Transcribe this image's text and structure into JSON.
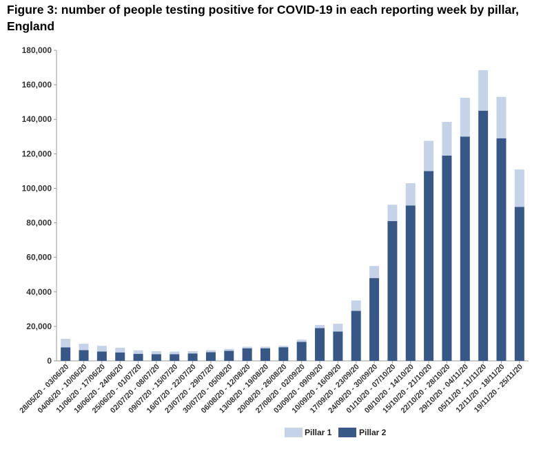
{
  "title": "Figure 3: number of people testing positive for COVID-19 in each reporting week by pillar, England",
  "colors": {
    "pillar1": "#c5d3e8",
    "pillar2": "#375887",
    "axis": "#999999"
  },
  "chart_data": {
    "type": "bar",
    "stacked": true,
    "title": "Figure 3: number of people testing positive for COVID-19 in each reporting week by pillar, England",
    "xlabel": "",
    "ylabel": "",
    "ylim": [
      0,
      180000
    ],
    "yticks": [
      0,
      20000,
      40000,
      60000,
      80000,
      100000,
      120000,
      140000,
      160000,
      180000
    ],
    "ytick_labels": [
      "0",
      "20,000",
      "40,000",
      "60,000",
      "80,000",
      "100,000",
      "120,000",
      "140,000",
      "160,000",
      "180,000"
    ],
    "grid": false,
    "legend_position": "bottom",
    "categories": [
      "28/05/20 - 03/06/20",
      "04/06/20 - 10/06/20",
      "11/06/20 - 17/06/20",
      "18/06/20 - 24/06/20",
      "25/06/20 - 01/07/20",
      "02/07/20 - 08/07/20",
      "09/07/20 - 15/07/20",
      "16/07/20 - 22/07/20",
      "23/07/20 - 29/07/20",
      "30/07/20 - 05/08/20",
      "06/08/20 - 12/08/20",
      "13/08/20 - 19/08/20",
      "20/08/20 - 26/08/20",
      "27/08/20 - 02/09/20",
      "03/09/20 - 09/09/20",
      "10/09/20 - 16/09/20",
      "17/09/20 - 23/09/20",
      "24/09/20 - 30/09/20",
      "01/10/20 - 07/10/20",
      "08/10/20 - 14/10/20",
      "15/10/20 - 21/10/20",
      "22/10/20 - 28/10/20",
      "29/10/20 - 04/11/20",
      "05/11/20 - 11/11/20",
      "12/11/20 - 18/11/20",
      "19/11/20 - 25/11/20"
    ],
    "series": [
      {
        "name": "Pillar 1",
        "values": [
          5000,
          3700,
          3300,
          2700,
          2000,
          1700,
          1500,
          1300,
          1200,
          1100,
          900,
          900,
          800,
          1300,
          1800,
          4500,
          6000,
          7000,
          9500,
          13000,
          17500,
          19500,
          22500,
          23500,
          24000,
          21700
        ]
      },
      {
        "name": "Pillar 2",
        "values": [
          7800,
          6200,
          5400,
          4900,
          4100,
          3900,
          3900,
          4300,
          5000,
          5800,
          7300,
          7300,
          7900,
          11000,
          19000,
          17000,
          29000,
          48000,
          81000,
          90000,
          110000,
          119000,
          130000,
          145000,
          129000,
          89200
        ]
      }
    ]
  }
}
